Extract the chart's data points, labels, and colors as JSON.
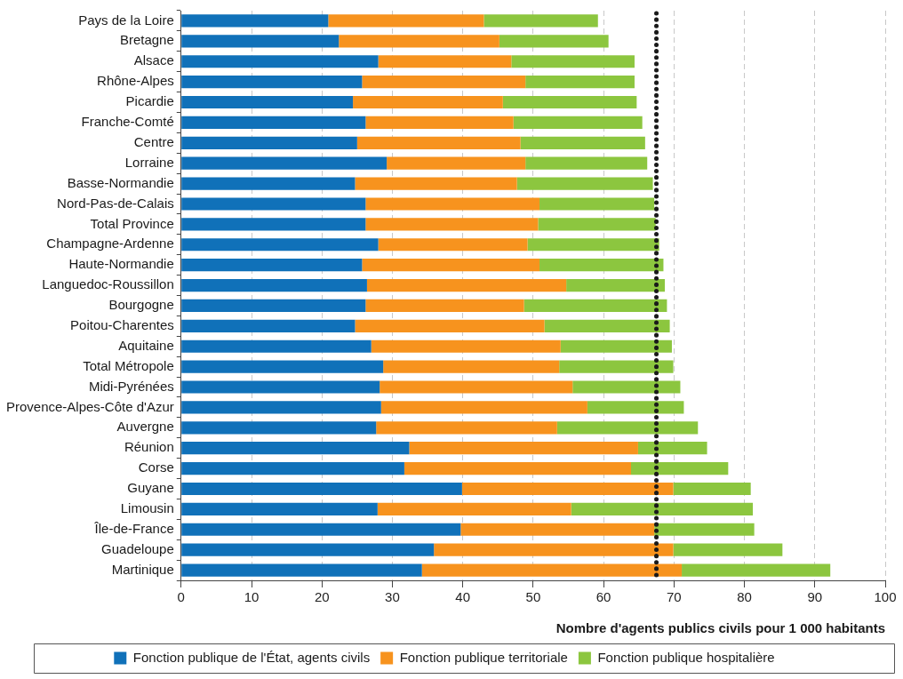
{
  "chart_data": {
    "type": "bar",
    "orientation": "horizontal",
    "stacked": true,
    "xlabel": "Nombre d'agents publics civils pour 1 000 habitants",
    "categories": [
      "Pays de la Loire",
      "Bretagne",
      "Alsace",
      "Rhône-Alpes",
      "Picardie",
      "Franche-Comté",
      "Centre",
      "Lorraine",
      "Basse-Normandie",
      "Nord-Pas-de-Calais",
      "Total Province",
      "Champagne-Ardenne",
      "Haute-Normandie",
      "Languedoc-Roussillon",
      "Bourgogne",
      "Poitou-Charentes",
      "Aquitaine",
      "Total Métropole",
      "Midi-Pyrénées",
      "Provence-Alpes-Côte d'Azur",
      "Auvergne",
      "Réunion",
      "Corse",
      "Guyane",
      "Limousin",
      "Île-de-France",
      "Guadeloupe",
      "Martinique"
    ],
    "series": [
      {
        "name": "Fonction publique de l'État, agents civils",
        "color": "#1071b9",
        "values": [
          20.9,
          22.4,
          28.0,
          25.7,
          24.4,
          26.2,
          25.0,
          29.2,
          24.7,
          26.2,
          26.2,
          28.0,
          25.7,
          26.4,
          26.2,
          24.7,
          27.0,
          28.7,
          28.2,
          28.4,
          27.7,
          32.4,
          31.7,
          39.9,
          27.9,
          39.7,
          35.9,
          34.2
        ]
      },
      {
        "name": "Fonction publique territoriale",
        "color": "#f7931e",
        "values": [
          22.1,
          22.8,
          18.9,
          23.2,
          21.3,
          21.0,
          23.2,
          19.7,
          23.0,
          24.7,
          24.5,
          21.2,
          25.2,
          28.3,
          22.5,
          26.9,
          26.9,
          25.0,
          27.4,
          29.3,
          25.7,
          32.5,
          32.2,
          30.0,
          27.5,
          27.5,
          34.0,
          36.9
        ]
      },
      {
        "name": "Fonction publique hospitalière",
        "color": "#8cc63f",
        "values": [
          16.2,
          15.5,
          17.5,
          15.5,
          19.0,
          18.3,
          17.7,
          17.3,
          19.3,
          16.3,
          16.7,
          18.7,
          17.6,
          14.0,
          20.3,
          17.8,
          15.8,
          16.2,
          15.3,
          13.7,
          20.0,
          9.8,
          13.8,
          11.0,
          25.8,
          14.2,
          15.5,
          21.1
        ]
      }
    ],
    "xlim": [
      0,
      100
    ],
    "xticks": [
      0,
      10,
      20,
      30,
      40,
      50,
      60,
      70,
      80,
      90,
      100
    ],
    "grid": "x",
    "legend": "bottom",
    "ref_lines": [
      {
        "axis": "x",
        "value": 67.5,
        "line_style": "dotted",
        "color": "#1a1a1a"
      }
    ]
  }
}
